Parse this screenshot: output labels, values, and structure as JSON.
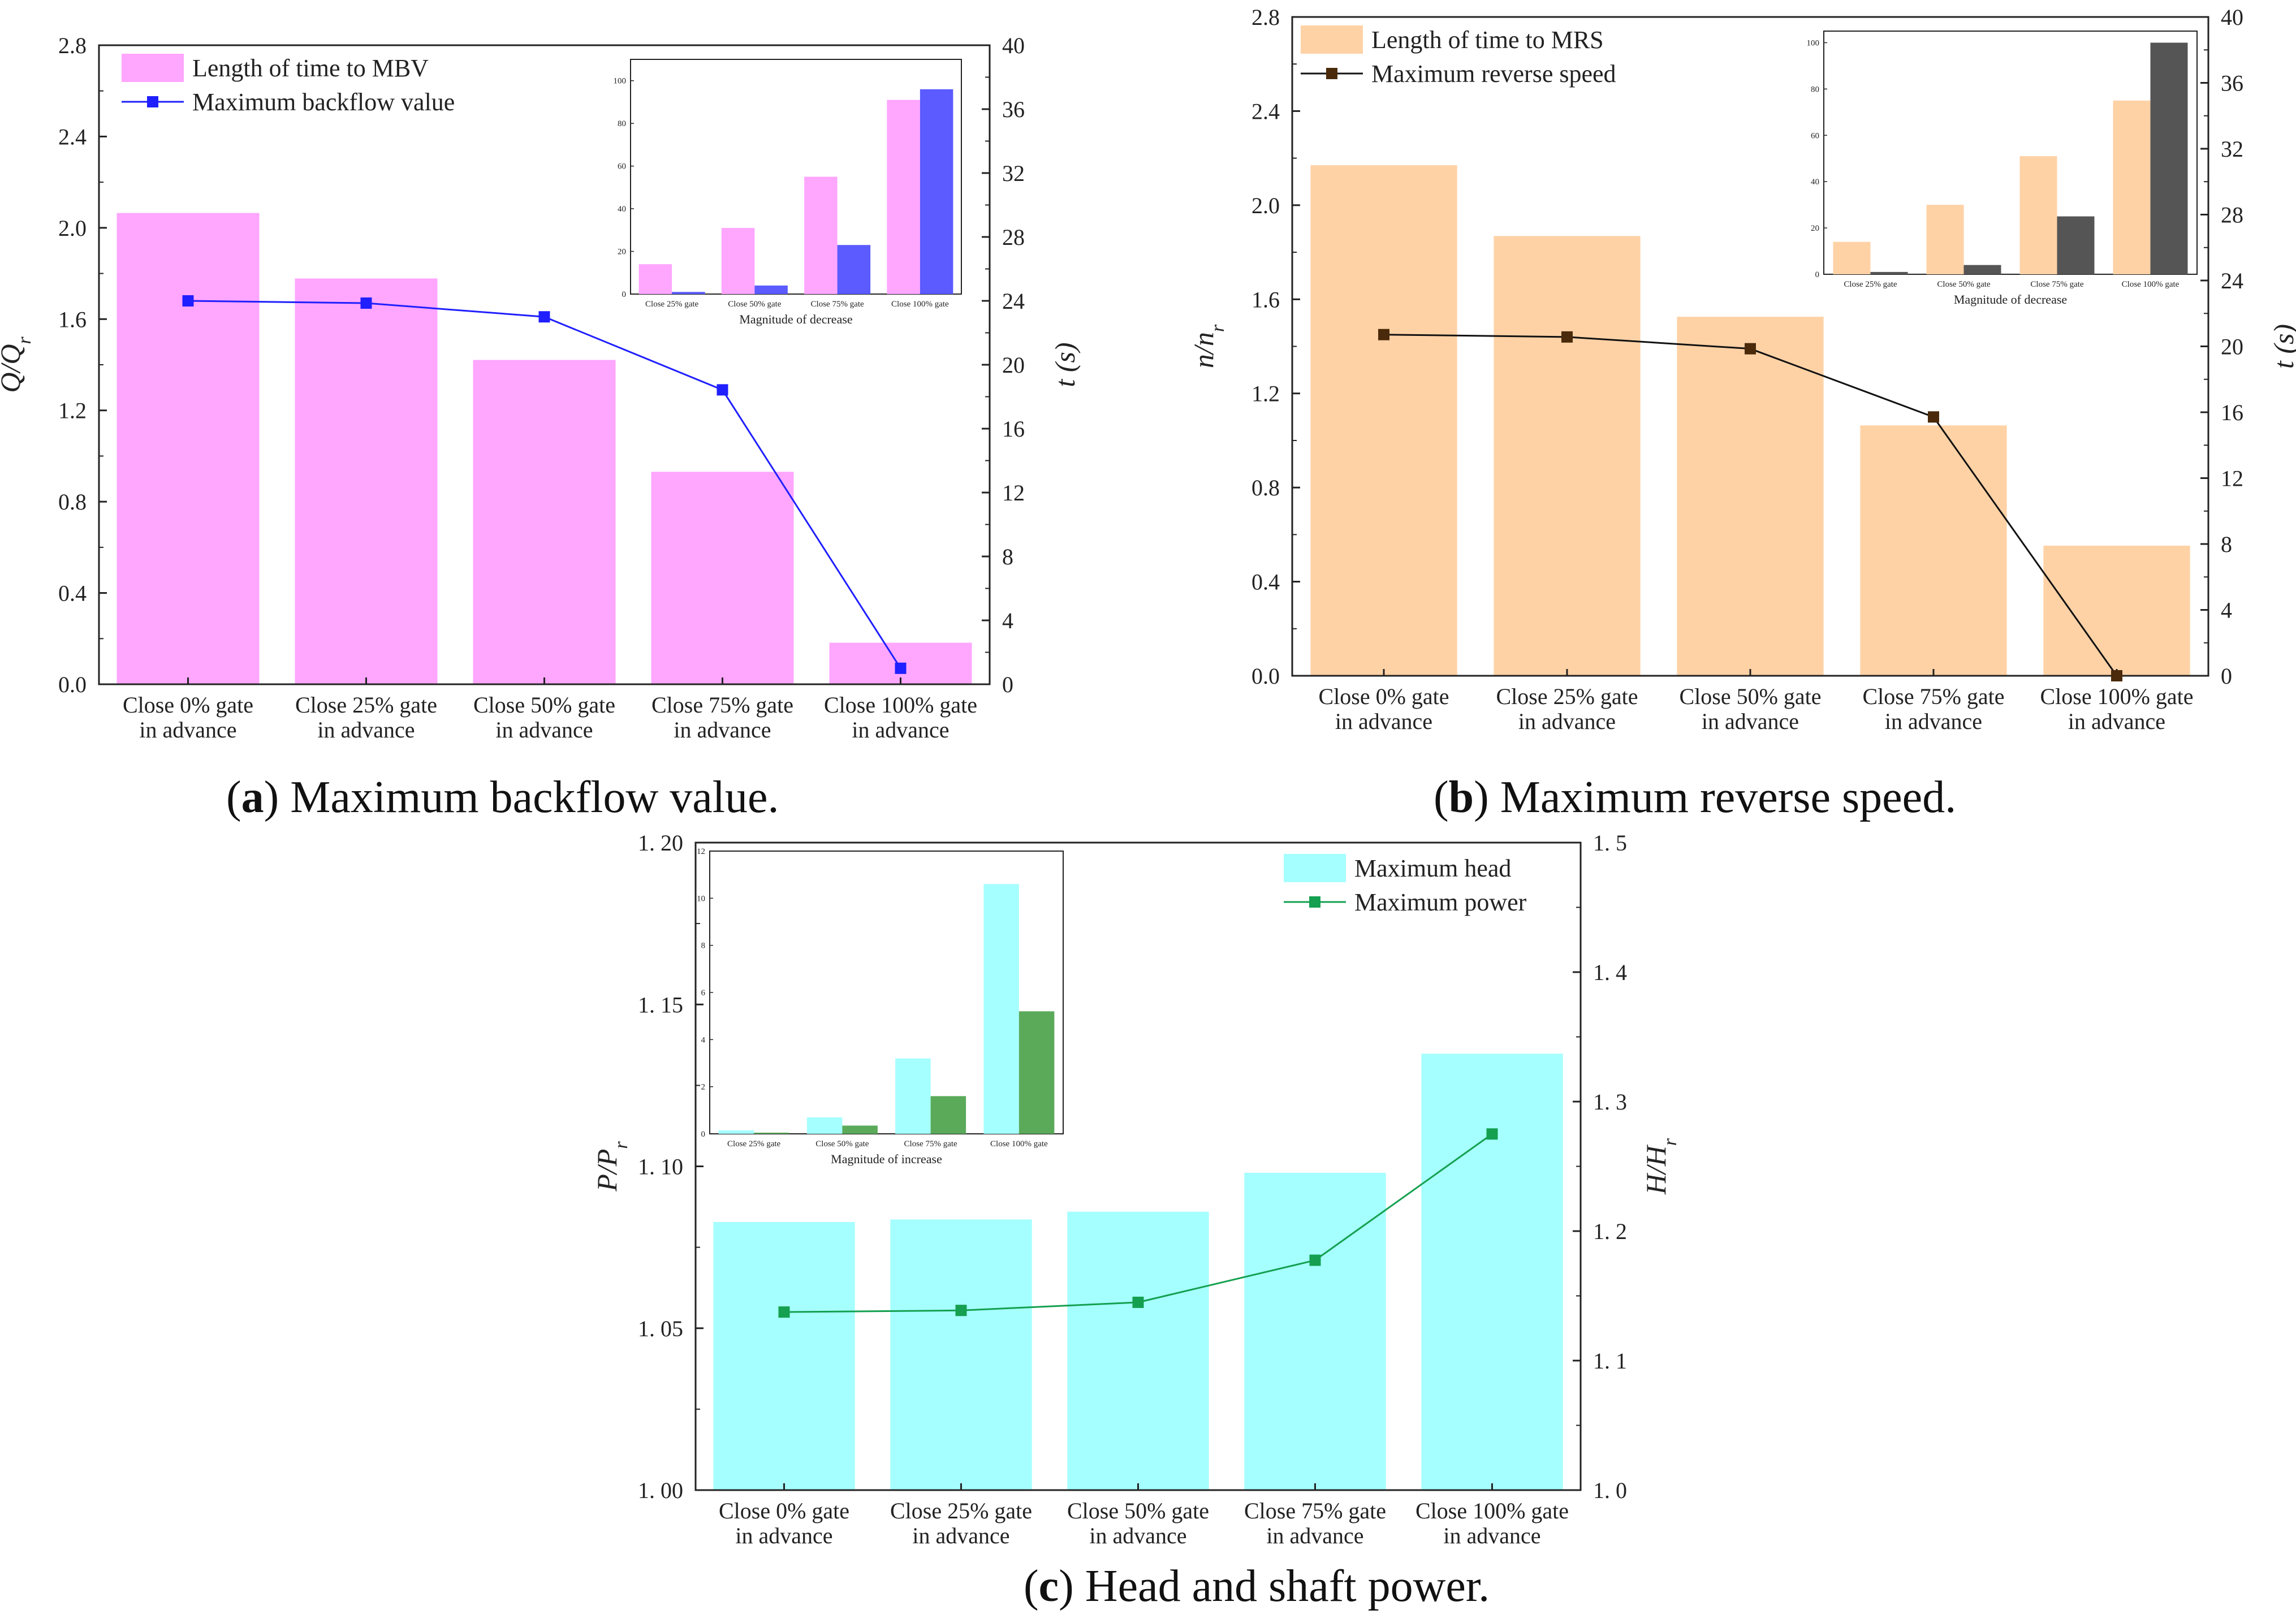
{
  "captions": {
    "a": {
      "letter": "a",
      "text": ") Maximum backflow value."
    },
    "b": {
      "letter": "b",
      "text": ") Maximum reverse speed."
    },
    "c": {
      "letter": "c",
      "text": ") Head and shaft power."
    }
  },
  "colors": {
    "pink": "#ffa6ff",
    "blue": "#1f1fff",
    "blue_inset": "#5b5bff",
    "orange": "#ffd2a6",
    "black": "#111111",
    "marker_b": "#4a2a0a",
    "grey_inset": "#555555",
    "cyan": "#a6ffff",
    "green": "#14a050",
    "green_inset": "#5aaa5a"
  },
  "chart_data": [
    {
      "id": "a",
      "type": "bar",
      "categories": [
        "Close 0% gate\nin advance",
        "Close 25% gate\nin advance",
        "Close 50% gate\nin advance",
        "Close 75% gate\nin advance",
        "Close 100% gate\nin advance"
      ],
      "ylabel_left": "Q/Qr",
      "ylabel_right": "t (s)",
      "y_left": {
        "min": 0,
        "max": 2.8,
        "ticks": [
          "0.0",
          "0.4",
          "0.8",
          "1.2",
          "1.6",
          "2.0",
          "2.4",
          "2.8"
        ]
      },
      "y_right": {
        "min": 0,
        "max": 40,
        "ticks": [
          "0",
          "4",
          "8",
          "12",
          "16",
          "20",
          "24",
          "28",
          "32",
          "36",
          "40"
        ]
      },
      "bar_series": {
        "name": "Length of time to MBV",
        "axis": "right",
        "values": [
          29.5,
          25.4,
          20.3,
          13.3,
          2.6
        ]
      },
      "line_series": {
        "name": "Maximum backflow value",
        "axis": "left",
        "values": [
          1.68,
          1.67,
          1.61,
          1.29,
          0.07
        ]
      },
      "inset": {
        "xlabel": "Magnitude of decrease",
        "categories": [
          "Close 25% gate",
          "Close 50% gate",
          "Close 75% gate",
          "Close 100% gate"
        ],
        "ylim": [
          0,
          110
        ],
        "ticks": [
          "0",
          "20",
          "40",
          "60",
          "80",
          "100"
        ],
        "series": [
          {
            "name": "Length of time to MBV",
            "values": [
              14,
              31,
              55,
              91
            ]
          },
          {
            "name": "Maximum backflow value",
            "values": [
              1,
              4,
              23,
              96
            ]
          }
        ]
      }
    },
    {
      "id": "b",
      "type": "bar",
      "categories": [
        "Close 0% gate\nin advance",
        "Close 25% gate\nin advance",
        "Close 50% gate\nin advance",
        "Close 75% gate\nin advance",
        "Close 100% gate\nin advance"
      ],
      "ylabel_left": "n/nr",
      "ylabel_right": "t (s)",
      "y_left": {
        "min": 0,
        "max": 2.8,
        "ticks": [
          "0.0",
          "0.4",
          "0.8",
          "1.2",
          "1.6",
          "2.0",
          "2.4",
          "2.8"
        ]
      },
      "y_right": {
        "min": 0,
        "max": 40,
        "ticks": [
          "0",
          "4",
          "8",
          "12",
          "16",
          "20",
          "24",
          "28",
          "32",
          "36",
          "40"
        ]
      },
      "bar_series": {
        "name": "Length of time to MRS",
        "axis": "right",
        "values": [
          31.0,
          26.7,
          21.8,
          15.2,
          7.9
        ]
      },
      "line_series": {
        "name": "Maximum reverse speed",
        "axis": "left",
        "values": [
          1.45,
          1.44,
          1.39,
          1.1,
          0.0
        ]
      },
      "inset": {
        "xlabel": "Magnitude of decrease",
        "categories": [
          "Close 25% gate",
          "Close 50% gate",
          "Close 75% gate",
          "Close 100% gate"
        ],
        "ylim": [
          0,
          105
        ],
        "ticks": [
          "0",
          "20",
          "40",
          "60",
          "80",
          "100"
        ],
        "series": [
          {
            "name": "Length of time to MRS",
            "values": [
              14,
              30,
              51,
              75
            ]
          },
          {
            "name": "Maximum reverse speed",
            "values": [
              1,
              4,
              25,
              100
            ]
          }
        ]
      }
    },
    {
      "id": "c",
      "type": "bar",
      "categories": [
        "Close 0% gate\nin advance",
        "Close 25% gate\nin advance",
        "Close 50% gate\nin advance",
        "Close 75% gate\nin advance",
        "Close 100% gate\nin advance"
      ],
      "ylabel_left": "P/Pr",
      "ylabel_right": "H/Hr",
      "y_left": {
        "min": 1.0,
        "max": 1.2,
        "ticks": [
          "1. 00",
          "1. 05",
          "1. 10",
          "1. 15",
          "1. 20"
        ]
      },
      "y_right": {
        "min": 1.0,
        "max": 1.5,
        "ticks": [
          "1. 0",
          "1. 1",
          "1. 2",
          "1. 3",
          "1. 4",
          "1. 5"
        ]
      },
      "bar_series": {
        "name": "Maximum head",
        "axis": "right",
        "values": [
          1.207,
          1.209,
          1.215,
          1.245,
          1.337
        ]
      },
      "line_series": {
        "name": "Maximum power",
        "axis": "left",
        "values": [
          1.055,
          1.0555,
          1.058,
          1.071,
          1.11
        ]
      },
      "inset": {
        "xlabel": "Magnitude of increase",
        "categories": [
          "Close 25% gate",
          "Close 50% gate",
          "Close 75% gate",
          "Close 100% gate"
        ],
        "ylim": [
          0,
          12
        ],
        "ticks": [
          "0",
          "2",
          "4",
          "6",
          "8",
          "10",
          "12"
        ],
        "series": [
          {
            "name": "Maximum head",
            "values": [
              0.15,
              0.7,
              3.2,
              10.6
            ]
          },
          {
            "name": "Maximum power",
            "values": [
              0.05,
              0.35,
              1.6,
              5.2
            ]
          }
        ]
      }
    }
  ]
}
